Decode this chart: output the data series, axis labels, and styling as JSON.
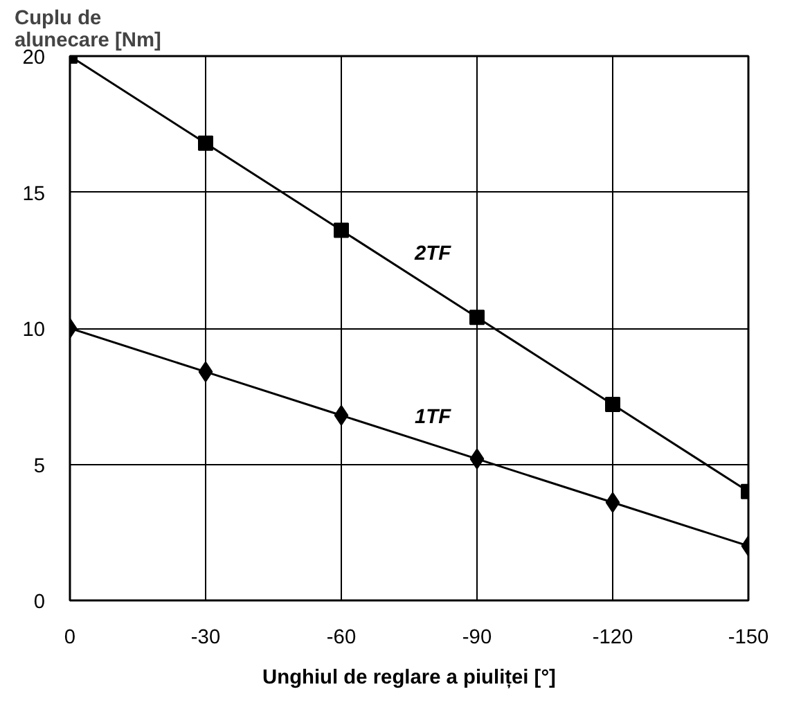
{
  "chart_data": {
    "type": "line",
    "ylabel": "Cuplu de\nalunecare [Nm]",
    "xlabel": "Unghiul de reglare a piuliței [°]",
    "x": [
      0,
      -30,
      -60,
      -90,
      -120,
      -150
    ],
    "series": [
      {
        "name": "2TF",
        "color": "#000000",
        "marker": "square",
        "values": [
          20,
          16.8,
          13.6,
          10.4,
          7.2,
          4
        ]
      },
      {
        "name": "1TF",
        "color": "#000000",
        "marker": "diamond",
        "values": [
          10,
          8.4,
          6.8,
          5.2,
          3.6,
          2
        ]
      }
    ],
    "xlim": [
      0,
      -150
    ],
    "xticks": [
      0,
      -30,
      -60,
      -90,
      -120,
      -150
    ],
    "ylim": [
      0,
      20
    ],
    "yticks": [
      0,
      5,
      10,
      15,
      20
    ],
    "grid": true
  }
}
